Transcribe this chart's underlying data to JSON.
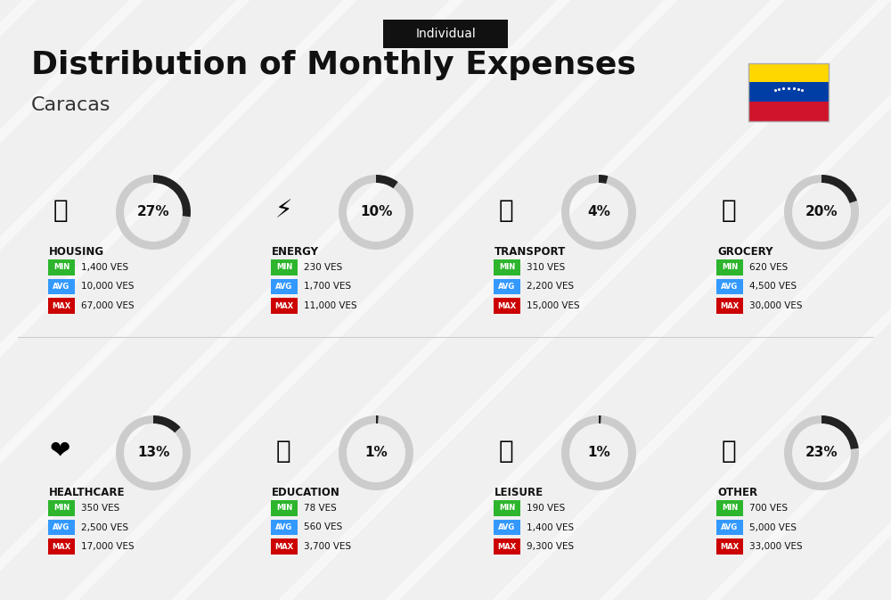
{
  "title": "Distribution of Monthly Expenses",
  "subtitle": "Caracas",
  "tag": "Individual",
  "bg_color": "#f0f0f0",
  "categories": [
    {
      "name": "HOUSING",
      "percent": 27,
      "min_val": "1,400 VES",
      "avg_val": "10,000 VES",
      "max_val": "67,000 VES",
      "icon": "housing",
      "row": 0,
      "col": 0
    },
    {
      "name": "ENERGY",
      "percent": 10,
      "min_val": "230 VES",
      "avg_val": "1,700 VES",
      "max_val": "11,000 VES",
      "icon": "energy",
      "row": 0,
      "col": 1
    },
    {
      "name": "TRANSPORT",
      "percent": 4,
      "min_val": "310 VES",
      "avg_val": "2,200 VES",
      "max_val": "15,000 VES",
      "icon": "transport",
      "row": 0,
      "col": 2
    },
    {
      "name": "GROCERY",
      "percent": 20,
      "min_val": "620 VES",
      "avg_val": "4,500 VES",
      "max_val": "30,000 VES",
      "icon": "grocery",
      "row": 0,
      "col": 3
    },
    {
      "name": "HEALTHCARE",
      "percent": 13,
      "min_val": "350 VES",
      "avg_val": "2,500 VES",
      "max_val": "17,000 VES",
      "icon": "healthcare",
      "row": 1,
      "col": 0
    },
    {
      "name": "EDUCATION",
      "percent": 1,
      "min_val": "78 VES",
      "avg_val": "560 VES",
      "max_val": "3,700 VES",
      "icon": "education",
      "row": 1,
      "col": 1
    },
    {
      "name": "LEISURE",
      "percent": 1,
      "min_val": "190 VES",
      "avg_val": "1,400 VES",
      "max_val": "9,300 VES",
      "icon": "leisure",
      "row": 1,
      "col": 2
    },
    {
      "name": "OTHER",
      "percent": 23,
      "min_val": "700 VES",
      "avg_val": "5,000 VES",
      "max_val": "33,000 VES",
      "icon": "other",
      "row": 1,
      "col": 3
    }
  ],
  "min_color": "#2db52d",
  "avg_color": "#3399ff",
  "max_color": "#cc0000",
  "label_color": "#ffffff",
  "text_color": "#111111",
  "arc_color": "#222222",
  "arc_bg_color": "#cccccc"
}
